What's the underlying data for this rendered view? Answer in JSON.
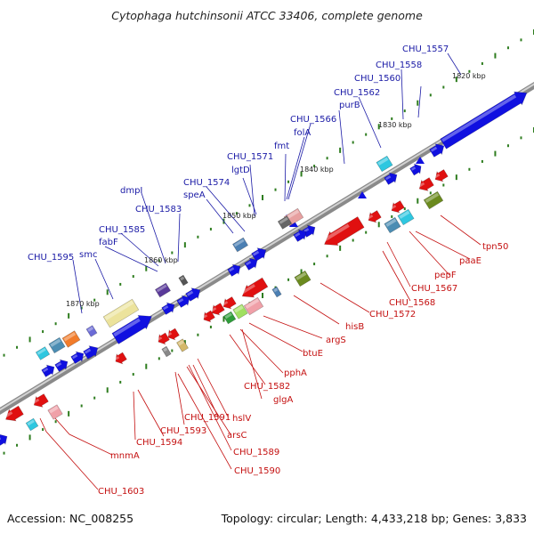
{
  "title": "Cytophaga hutchinsonii ATCC 33406, complete genome",
  "footer": {
    "accession": "Accession: NC_008255",
    "summary": "Topology: circular; Length: 4,433,218 bp; Genes: 3,833"
  },
  "colors": {
    "forward_label": "#1a1aa6",
    "reverse_label": "#c41010",
    "backbone": "#9a9a9a",
    "forward_gene": "#1010e0",
    "reverse_gene": "#e01010",
    "tick": "#2e7d1f"
  },
  "scale_labels": [
    "1820 kbp",
    "1830 kbp",
    "1840 kbp",
    "1850 kbp",
    "1860 kbp",
    "1870 kbp"
  ],
  "forward_labels": [
    "CHU_1557",
    "CHU_1558",
    "CHU_1560",
    "CHU_1562",
    "purB",
    "CHU_1566",
    "folA",
    "fmt",
    "CHU_1571",
    "lgtD",
    "CHU_1574",
    "speA",
    "dmpI",
    "CHU_1583",
    "CHU_1585",
    "fabF",
    "smc",
    "CHU_1595"
  ],
  "reverse_labels": [
    "tpn50",
    "paaE",
    "pepF",
    "CHU_1567",
    "CHU_1568",
    "CHU_1572",
    "hisB",
    "argS",
    "btuE",
    "pphA",
    "CHU_1582",
    "glgA",
    "hslV",
    "CHU_1591",
    "arsC",
    "CHU_1593",
    "CHU_1589",
    "CHU_1594",
    "CHU_1590",
    "mnmA",
    "CHU_1603"
  ]
}
